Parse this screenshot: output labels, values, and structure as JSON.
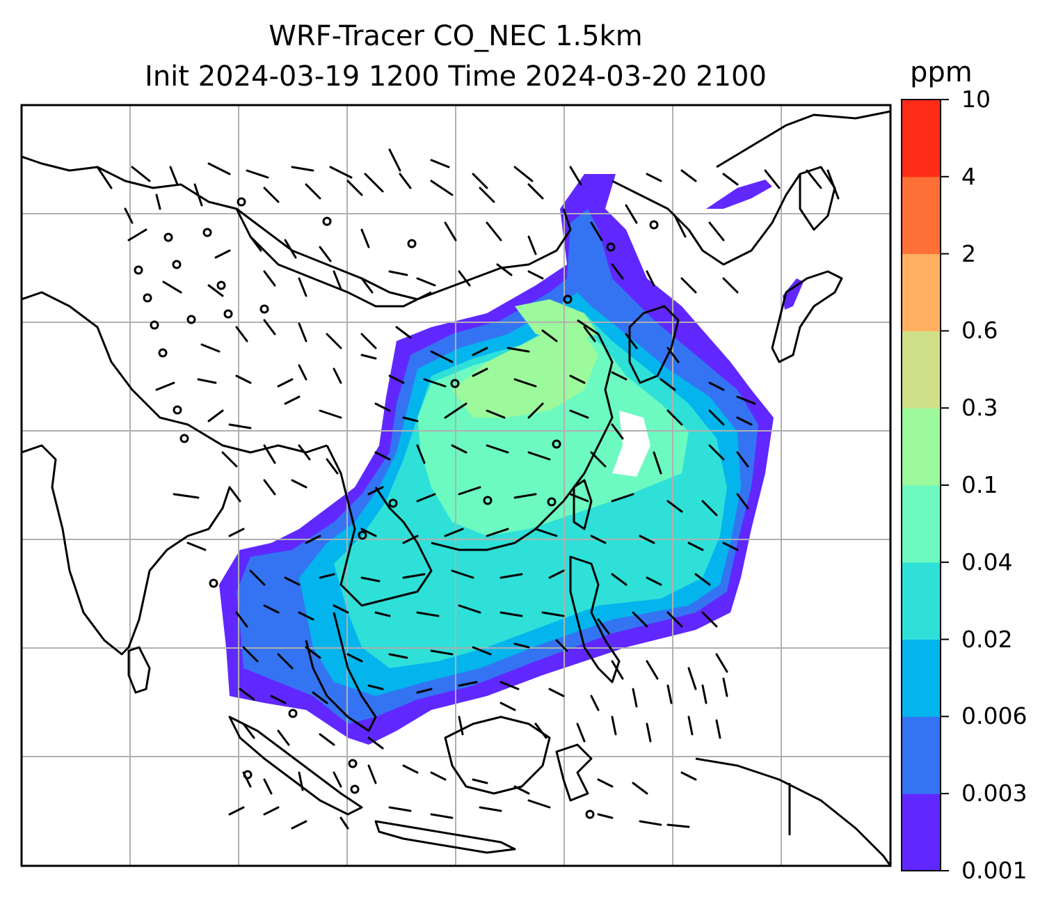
{
  "title_line1": "WRF-Tracer CO_NEC 1.5km",
  "title_line2": "Init 2024-03-19 1200 Time 2024-03-20 2100",
  "colorbar": {
    "unit": "ppm",
    "ticks": [
      "0.001",
      "0.003",
      "0.006",
      "0.02",
      "0.04",
      "0.1",
      "0.3",
      "0.6",
      "2",
      "4",
      "10"
    ],
    "colors": [
      "#6028ff",
      "#3474f2",
      "#04b4ec",
      "#2ee0d8",
      "#6cfac0",
      "#9cfa9c",
      "#d0e088",
      "#ffb060",
      "#ff7036",
      "#ff2c18"
    ]
  },
  "map": {
    "gridlines": "on",
    "land_outline_color": "#000000",
    "grid_color": "#b0b0b0",
    "wind_barb_color": "#000000"
  }
}
